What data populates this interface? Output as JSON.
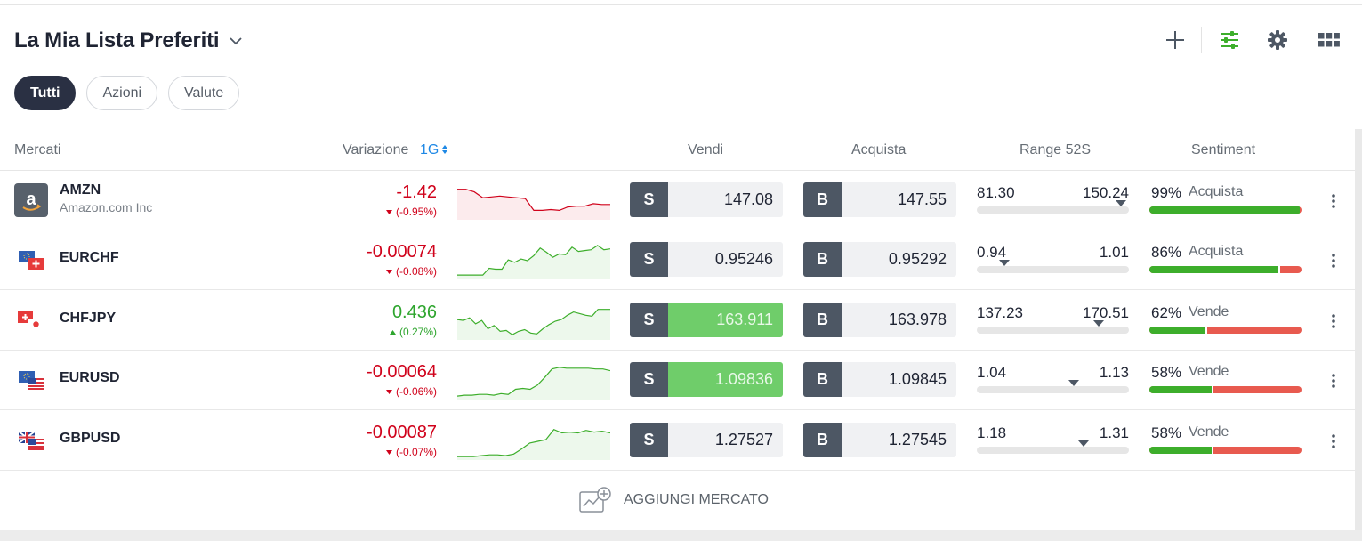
{
  "watchlist": {
    "title": "La Mia Lista Preferiti",
    "tools": [
      "plus-icon",
      "filter-sliders-icon",
      "gear-icon",
      "grid-icon"
    ],
    "filters": [
      {
        "label": "Tutti",
        "active": true
      },
      {
        "label": "Azioni",
        "active": false
      },
      {
        "label": "Valute",
        "active": false
      }
    ]
  },
  "columns": {
    "markets": "Mercati",
    "change": "Variazione",
    "period": "1G",
    "sell": "Vendi",
    "buy": "Acquista",
    "range": "Range 52S",
    "sentiment": "Sentiment"
  },
  "rows": [
    {
      "symbol": "AMZN",
      "name": "Amazon.com Inc",
      "change": "-1.42",
      "change_pct": "(-0.95%)",
      "direction": "down",
      "sell_tag": "S",
      "sell": "147.08",
      "sell_flash": false,
      "buy_tag": "B",
      "buy": "147.55",
      "range_low": "81.30",
      "range_high": "150.24",
      "range_pos": 0.95,
      "sentiment_pct": "99%",
      "sentiment_label": "Acquista",
      "sentiment_buy": 0.99,
      "spark": [
        34,
        34,
        31,
        24,
        25,
        26,
        25,
        24,
        23,
        9,
        9,
        10,
        9,
        13,
        14,
        14,
        17,
        16,
        16
      ]
    },
    {
      "symbol": "EURCHF",
      "name": "",
      "change": "-0.00074",
      "change_pct": "(-0.08%)",
      "direction": "down",
      "sell_tag": "S",
      "sell": "0.95246",
      "sell_flash": false,
      "buy_tag": "B",
      "buy": "0.95292",
      "range_low": "0.94",
      "range_high": "1.01",
      "range_pos": 0.18,
      "sentiment_pct": "86%",
      "sentiment_label": "Acquista",
      "sentiment_buy": 0.86,
      "spark": [
        3,
        3,
        3,
        3,
        3,
        11,
        10,
        10,
        21,
        18,
        22,
        20,
        26,
        35,
        30,
        24,
        28,
        27,
        36,
        31,
        32,
        33,
        38,
        33,
        34
      ]
    },
    {
      "symbol": "CHFJPY",
      "name": "",
      "change": "0.436",
      "change_pct": "(0.27%)",
      "direction": "up",
      "sell_tag": "S",
      "sell": "163.911",
      "sell_flash": true,
      "buy_tag": "B",
      "buy": "163.978",
      "range_low": "137.23",
      "range_high": "170.51",
      "range_pos": 0.8,
      "sentiment_pct": "62%",
      "sentiment_label": "Vende",
      "sentiment_buy": 0.38,
      "spark": [
        22,
        21,
        24,
        17,
        21,
        11,
        15,
        8,
        9,
        4,
        8,
        10,
        6,
        5,
        11,
        16,
        20,
        22,
        27,
        31,
        29,
        27,
        26,
        34,
        34,
        34
      ]
    },
    {
      "symbol": "EURUSD",
      "name": "",
      "change": "-0.00064",
      "change_pct": "(-0.06%)",
      "direction": "down",
      "sell_tag": "S",
      "sell": "1.09836",
      "sell_flash": true,
      "buy_tag": "B",
      "buy": "1.09845",
      "range_low": "1.04",
      "range_high": "1.13",
      "range_pos": 0.64,
      "sentiment_pct": "58%",
      "sentiment_label": "Vende",
      "sentiment_buy": 0.42,
      "spark": [
        2,
        3,
        3,
        4,
        4,
        3,
        5,
        4,
        10,
        11,
        10,
        15,
        24,
        34,
        36,
        35,
        35,
        35,
        35,
        34,
        34,
        32
      ]
    },
    {
      "symbol": "GBPUSD",
      "name": "",
      "change": "-0.00087",
      "change_pct": "(-0.07%)",
      "direction": "down",
      "sell_tag": "S",
      "sell": "1.27527",
      "sell_flash": false,
      "buy_tag": "B",
      "buy": "1.27545",
      "range_low": "1.18",
      "range_high": "1.31",
      "range_pos": 0.7,
      "sentiment_pct": "58%",
      "sentiment_label": "Vende",
      "sentiment_buy": 0.42,
      "spark": [
        2,
        2,
        2,
        3,
        4,
        4,
        3,
        5,
        11,
        18,
        20,
        22,
        34,
        30,
        31,
        30,
        33,
        31,
        32,
        30
      ]
    }
  ],
  "add_market": "AGGIUNGI MERCATO",
  "colors": {
    "negative": "#d0021b",
    "positive": "#2ea52e",
    "spark_red": "#d0021b",
    "spark_green": "#3dae2b",
    "sentiment_buy": "#3dae2b",
    "sentiment_sell": "#e85a4f"
  }
}
